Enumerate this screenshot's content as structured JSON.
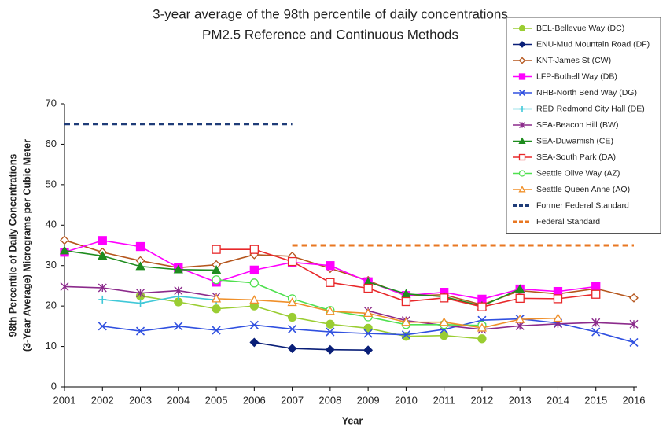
{
  "chart_data": {
    "type": "line",
    "title": "3-year average of the 98th percentile of daily concentrations",
    "subtitle": "PM2.5 Reference and Continuous Methods",
    "xlabel": "Year",
    "ylabel": [
      "98th Percentile of Daily Concentrations",
      "(3-Year Average) Micrograms per Cubic Meter"
    ],
    "x": [
      2001,
      2002,
      2003,
      2004,
      2005,
      2006,
      2007,
      2008,
      2009,
      2010,
      2011,
      2012,
      2013,
      2014,
      2015,
      2016
    ],
    "xlim": [
      2001,
      2016
    ],
    "xticks": [
      2001,
      2002,
      2003,
      2004,
      2005,
      2006,
      2007,
      2008,
      2009,
      2010,
      2011,
      2012,
      2013,
      2014,
      2015,
      2016
    ],
    "ylim": [
      0,
      70
    ],
    "yticks": [
      0,
      10,
      20,
      30,
      40,
      50,
      60,
      70
    ],
    "legend": "top-right",
    "series": [
      {
        "name": "BEL-Bellevue Way (DC)",
        "color": "#9acd32",
        "marker": "circle",
        "filled": true,
        "values": [
          null,
          null,
          22.5,
          21,
          19.3,
          20,
          17.2,
          15.5,
          14.5,
          12.5,
          12.7,
          11.9,
          null,
          null,
          null,
          null
        ]
      },
      {
        "name": "ENU-Mud Mountain Road (DF)",
        "color": "#0a1f78",
        "marker": "diamond",
        "filled": true,
        "values": [
          null,
          null,
          null,
          null,
          null,
          11,
          9.5,
          9.2,
          9.1,
          null,
          null,
          null,
          null,
          null,
          null,
          null
        ]
      },
      {
        "name": "KNT-James St (CW)",
        "color": "#b5561d",
        "marker": "diamond",
        "filled": false,
        "values": [
          36.3,
          33.3,
          31.2,
          29.5,
          30.2,
          32.7,
          32.3,
          29.3,
          26.3,
          22.5,
          22.8,
          20.3,
          23.8,
          23,
          24.3,
          22
        ]
      },
      {
        "name": "LFP-Bothell Way (DB)",
        "color": "#ff00ff",
        "marker": "square",
        "filled": true,
        "values": [
          33.3,
          36.2,
          34.7,
          29.5,
          25.9,
          28.9,
          30.8,
          30,
          26,
          22.6,
          23.4,
          21.7,
          24.2,
          23.6,
          24.8,
          null
        ]
      },
      {
        "name": "NHB-North Bend Way (DG)",
        "color": "#3050e0",
        "marker": "x",
        "filled": false,
        "values": [
          null,
          15,
          13.8,
          15,
          14,
          15.3,
          14.3,
          13.6,
          13.2,
          12.9,
          14.2,
          16.5,
          16.8,
          15.8,
          13.6,
          11
        ]
      },
      {
        "name": "RED-Redmond City Hall (DE)",
        "color": "#40c8d8",
        "marker": "plus",
        "filled": false,
        "values": [
          null,
          21.6,
          20.7,
          22.4,
          21.5,
          null,
          null,
          null,
          null,
          null,
          null,
          null,
          null,
          null,
          null,
          null
        ]
      },
      {
        "name": "SEA-Beacon Hill (BW)",
        "color": "#8b2a8b",
        "marker": "star",
        "filled": false,
        "values": [
          24.8,
          24.5,
          23.2,
          23.8,
          22.3,
          null,
          null,
          null,
          18.8,
          16.4,
          15.2,
          14.2,
          15.1,
          15.6,
          15.9,
          15.5
        ]
      },
      {
        "name": "SEA-Duwamish (CE)",
        "color": "#1e8c1e",
        "marker": "triangle",
        "filled": true,
        "values": [
          33.7,
          32.4,
          29.8,
          29,
          28.9,
          null,
          null,
          null,
          25.9,
          23,
          22.3,
          20,
          24.2,
          null,
          null,
          null
        ]
      },
      {
        "name": "SEA-South Park (DA)",
        "color": "#e8282a",
        "marker": "square",
        "filled": false,
        "values": [
          null,
          null,
          null,
          null,
          34,
          34,
          31,
          25.8,
          24.4,
          21.1,
          22,
          19.8,
          21.9,
          21.8,
          22.9,
          null
        ]
      },
      {
        "name": "Seattle Olive Way (AZ)",
        "color": "#50e050",
        "marker": "circle",
        "filled": false,
        "values": [
          null,
          null,
          null,
          null,
          26.5,
          25.7,
          21.8,
          18.9,
          17.3,
          15.4,
          15.4,
          15.2,
          null,
          null,
          null,
          null
        ]
      },
      {
        "name": "Seattle Queen Anne (AQ)",
        "color": "#f0902a",
        "marker": "triangle",
        "filled": false,
        "values": [
          null,
          null,
          null,
          null,
          21.8,
          21.5,
          20.9,
          18.7,
          18.2,
          16,
          16,
          14.6,
          16.7,
          17,
          null,
          null
        ]
      },
      {
        "name": "Former Federal Standard",
        "color": "#1f3c78",
        "marker": "none",
        "dashed": true,
        "values": [
          65,
          65,
          65,
          65,
          65,
          65,
          65,
          null,
          null,
          null,
          null,
          null,
          null,
          null,
          null,
          null
        ]
      },
      {
        "name": "Federal Standard",
        "color": "#e87722",
        "marker": "none",
        "dashed": true,
        "values": [
          null,
          null,
          null,
          null,
          null,
          null,
          35,
          35,
          35,
          35,
          35,
          35,
          35,
          35,
          35,
          35
        ]
      }
    ]
  }
}
